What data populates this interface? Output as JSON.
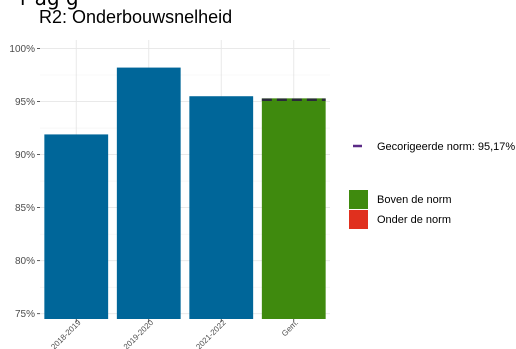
{
  "title_fragment": "r ag g",
  "chart_data": {
    "type": "bar",
    "title": "R2: Onderbouwsnelheid",
    "xlabel": "",
    "ylabel": "",
    "categories": [
      "2018-2019",
      "2019-2020",
      "2021-2022",
      "Gem."
    ],
    "values": [
      91.9,
      98.2,
      95.5,
      95.3
    ],
    "bar_colors": [
      "#006699",
      "#006699",
      "#006699",
      "#3f8a0e"
    ],
    "ylim": [
      74.5,
      100.8
    ],
    "yticks": [
      75,
      80,
      85,
      90,
      95,
      100
    ],
    "ytick_labels": [
      "75%",
      "80%",
      "85%",
      "90%",
      "95%",
      "100%"
    ],
    "norm": {
      "value": 95.17,
      "label": "Gecorigeerde norm: 95,17%",
      "color": "#5b2a86"
    },
    "grid": true,
    "legend_position": "right",
    "legend": [
      {
        "label": "Boven de norm",
        "color": "#3f8a0e"
      },
      {
        "label": "Onder de norm",
        "color": "#e0301e"
      }
    ]
  }
}
